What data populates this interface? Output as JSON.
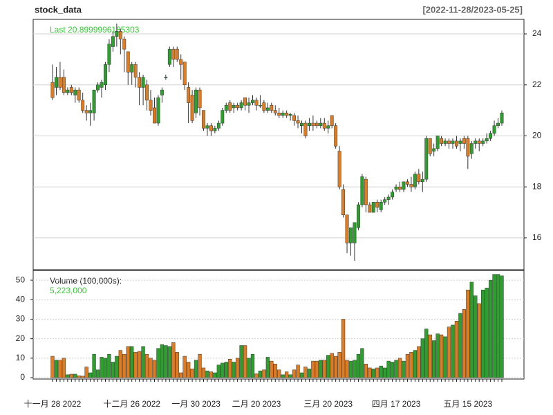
{
  "chart_data": {
    "type": "candlestick",
    "title": "stock_data",
    "subtitle": "[2022-11-28/2023-05-25]",
    "last_label": "Last 20.8999996185303",
    "volume_label": "Volume (100,000s):",
    "volume_last_label": "5,223,000",
    "up_color": "#2ca02c",
    "down_color": "#e07b20",
    "label_color": "#33cc33",
    "grid": true,
    "categories": [
      "十一月 28 2022",
      null,
      null,
      null,
      null,
      null,
      null,
      null,
      null,
      null,
      null,
      null,
      null,
      null,
      null,
      null,
      null,
      null,
      null,
      null,
      null,
      "十二月 26 2022",
      null,
      null,
      null,
      null,
      null,
      null,
      null,
      null,
      null,
      null,
      null,
      null,
      null,
      null,
      null,
      null,
      "一月 30 2023",
      null,
      null,
      null,
      null,
      null,
      null,
      null,
      null,
      null,
      null,
      null,
      null,
      null,
      null,
      null,
      "二月 20 2023",
      null,
      null,
      null,
      null,
      null,
      null,
      null,
      null,
      null,
      null,
      null,
      null,
      null,
      null,
      null,
      null,
      null,
      null,
      "三月 20 2023",
      null,
      null,
      null,
      null,
      null,
      null,
      null,
      null,
      null,
      null,
      null,
      null,
      null,
      null,
      null,
      null,
      null,
      "四月 17 2023",
      null,
      null,
      null,
      null,
      null,
      null,
      null,
      null,
      null,
      null,
      null,
      null,
      null,
      null,
      null,
      null,
      null,
      null,
      "五月 15 2023",
      null,
      null,
      null,
      null,
      null,
      null,
      null,
      null,
      null
    ],
    "ohlc": [
      [
        22.1,
        22.8,
        21.4,
        21.5
      ],
      [
        21.9,
        22.7,
        21.6,
        22.3
      ],
      [
        22.3,
        22.9,
        21.8,
        21.9
      ],
      [
        22.3,
        22.6,
        21.6,
        21.7
      ],
      [
        21.7,
        21.9,
        21.6,
        21.8
      ],
      [
        21.9,
        22.0,
        21.6,
        21.7
      ],
      [
        21.6,
        21.9,
        21.3,
        21.8
      ],
      [
        21.8,
        21.9,
        21.3,
        21.4
      ],
      [
        21.4,
        21.7,
        20.9,
        21.0
      ],
      [
        21.0,
        21.2,
        20.6,
        20.9
      ],
      [
        20.9,
        21.3,
        20.4,
        21.0
      ],
      [
        20.9,
        21.8,
        20.6,
        21.8
      ],
      [
        21.8,
        22.1,
        21.7,
        22.0
      ],
      [
        21.9,
        22.2,
        21.5,
        22.1
      ],
      [
        22.0,
        22.9,
        21.8,
        22.8
      ],
      [
        22.8,
        23.8,
        22.5,
        23.6
      ],
      [
        23.5,
        24.1,
        23.3,
        23.9
      ],
      [
        23.9,
        24.4,
        23.5,
        24.1
      ],
      [
        24.1,
        24.2,
        23.2,
        23.8
      ],
      [
        23.8,
        23.9,
        22.5,
        23.4
      ],
      [
        23.3,
        23.3,
        22.0,
        22.5
      ],
      [
        22.5,
        22.9,
        22.0,
        22.8
      ],
      [
        22.8,
        22.9,
        21.9,
        22.3
      ],
      [
        22.3,
        22.5,
        21.2,
        21.9
      ],
      [
        21.9,
        22.4,
        21.2,
        22.3
      ],
      [
        22.0,
        22.2,
        21.0,
        21.4
      ],
      [
        21.4,
        21.8,
        20.8,
        21.0
      ],
      [
        21.1,
        21.5,
        20.5,
        20.5
      ],
      [
        20.5,
        21.6,
        20.4,
        21.5
      ],
      [
        21.6,
        21.9,
        21.3,
        21.8
      ],
      [
        22.3,
        22.4,
        22.2,
        22.3
      ],
      [
        22.8,
        23.5,
        22.7,
        23.4
      ],
      [
        23.4,
        23.5,
        22.7,
        23.0
      ],
      [
        23.4,
        23.5,
        22.9,
        23.0
      ],
      [
        23.0,
        23.2,
        22.2,
        22.8
      ],
      [
        22.9,
        22.9,
        21.8,
        22.0
      ],
      [
        21.9,
        22.1,
        20.5,
        21.3
      ],
      [
        21.6,
        21.8,
        20.5,
        20.6
      ],
      [
        20.9,
        21.9,
        20.7,
        21.8
      ],
      [
        21.8,
        21.9,
        20.8,
        21.1
      ],
      [
        21.0,
        21.0,
        20.2,
        20.3
      ],
      [
        20.3,
        20.5,
        20.0,
        20.4
      ],
      [
        20.4,
        20.5,
        20.0,
        20.2
      ],
      [
        20.2,
        20.4,
        20.1,
        20.3
      ],
      [
        20.3,
        20.6,
        20.2,
        20.5
      ],
      [
        20.5,
        21.1,
        20.4,
        21.0
      ],
      [
        21.0,
        21.3,
        20.9,
        21.2
      ],
      [
        21.3,
        21.4,
        20.9,
        21.0
      ],
      [
        21.1,
        21.3,
        20.9,
        21.2
      ],
      [
        21.2,
        21.3,
        21.0,
        21.1
      ],
      [
        21.1,
        21.4,
        21.0,
        21.3
      ],
      [
        21.5,
        21.5,
        21.0,
        21.2
      ],
      [
        21.2,
        21.5,
        20.9,
        21.3
      ],
      [
        21.3,
        21.6,
        21.2,
        21.4
      ],
      [
        21.4,
        21.5,
        21.0,
        21.2
      ],
      [
        21.2,
        21.6,
        21.1,
        21.2
      ],
      [
        21.3,
        21.4,
        20.9,
        21.0
      ],
      [
        21.0,
        21.3,
        20.9,
        21.1
      ],
      [
        21.2,
        21.3,
        20.9,
        21.0
      ],
      [
        21.0,
        21.2,
        20.8,
        20.9
      ],
      [
        20.9,
        21.1,
        20.7,
        20.8
      ],
      [
        20.8,
        21.0,
        20.7,
        20.9
      ],
      [
        20.9,
        21.0,
        20.7,
        20.8
      ],
      [
        20.8,
        20.9,
        20.6,
        20.85
      ],
      [
        20.8,
        20.9,
        20.4,
        20.6
      ],
      [
        20.6,
        20.8,
        20.3,
        20.5
      ],
      [
        20.4,
        20.6,
        20.1,
        20.5
      ],
      [
        20.5,
        20.6,
        19.9,
        20.0
      ],
      [
        20.4,
        20.7,
        20.2,
        20.5
      ],
      [
        20.5,
        20.8,
        20.2,
        20.4
      ],
      [
        20.5,
        20.6,
        20.3,
        20.4
      ],
      [
        20.4,
        20.7,
        20.3,
        20.5
      ],
      [
        20.5,
        20.7,
        20.2,
        20.3
      ],
      [
        20.3,
        20.6,
        20.1,
        20.4
      ],
      [
        20.8,
        20.8,
        20.3,
        20.4
      ],
      [
        20.4,
        20.5,
        19.5,
        19.6
      ],
      [
        19.4,
        19.6,
        17.9,
        18.0
      ],
      [
        17.9,
        18.1,
        16.8,
        16.9
      ],
      [
        16.9,
        16.9,
        15.4,
        15.8
      ],
      [
        15.8,
        16.4,
        15.3,
        16.4
      ],
      [
        15.8,
        16.6,
        15.1,
        16.6
      ],
      [
        16.4,
        17.4,
        16.3,
        17.3
      ],
      [
        17.3,
        18.5,
        17.2,
        18.4
      ],
      [
        18.3,
        18.4,
        17.0,
        17.3
      ],
      [
        17.3,
        17.4,
        17.0,
        17.0
      ],
      [
        17.0,
        17.4,
        17.0,
        17.4
      ],
      [
        17.4,
        17.5,
        17.0,
        17.2
      ],
      [
        17.1,
        17.5,
        17.0,
        17.4
      ],
      [
        17.4,
        17.6,
        17.3,
        17.5
      ],
      [
        17.5,
        17.7,
        17.3,
        17.6
      ],
      [
        17.6,
        17.9,
        17.5,
        17.8
      ],
      [
        17.9,
        18.1,
        17.8,
        18.0
      ],
      [
        18.0,
        18.2,
        17.8,
        17.9
      ],
      [
        17.9,
        18.2,
        17.8,
        18.2
      ],
      [
        18.2,
        18.3,
        18.0,
        18.1
      ],
      [
        18.1,
        18.4,
        17.8,
        18.0
      ],
      [
        18.0,
        18.6,
        17.9,
        18.5
      ],
      [
        18.5,
        18.7,
        18.1,
        18.2
      ],
      [
        18.2,
        18.6,
        17.8,
        18.3
      ],
      [
        18.3,
        20.0,
        18.2,
        19.9
      ],
      [
        19.9,
        19.9,
        19.2,
        19.3
      ],
      [
        19.4,
        19.7,
        19.2,
        19.5
      ],
      [
        19.5,
        20.0,
        19.4,
        20.0
      ],
      [
        19.9,
        20.0,
        19.6,
        19.7
      ],
      [
        19.7,
        19.9,
        19.6,
        19.8
      ],
      [
        19.8,
        19.9,
        19.5,
        19.7
      ],
      [
        19.7,
        19.9,
        19.5,
        19.8
      ],
      [
        19.8,
        20.0,
        19.5,
        19.6
      ],
      [
        19.7,
        19.9,
        19.4,
        19.8
      ],
      [
        19.9,
        20.0,
        19.5,
        19.7
      ],
      [
        19.9,
        20.0,
        18.7,
        19.2
      ],
      [
        19.3,
        19.8,
        19.1,
        19.7
      ],
      [
        19.7,
        19.9,
        19.5,
        19.8
      ],
      [
        19.8,
        19.9,
        19.4,
        19.7
      ],
      [
        19.7,
        19.9,
        19.6,
        19.8
      ],
      [
        19.8,
        20.1,
        19.7,
        19.9
      ],
      [
        19.9,
        20.2,
        19.8,
        20.1
      ],
      [
        20.1,
        20.6,
        20.0,
        20.4
      ],
      [
        20.4,
        20.7,
        20.3,
        20.5
      ],
      [
        20.5,
        21.0,
        20.4,
        20.8999996185303
      ]
    ],
    "volume": [
      11,
      9,
      9,
      10,
      1.5,
      1.8,
      1.8,
      1,
      0.8,
      5.5,
      2.5,
      12,
      4,
      10.5,
      10,
      12,
      8,
      11,
      14,
      12,
      16,
      16,
      13,
      13.5,
      16,
      12,
      10,
      9,
      15,
      17,
      16.5,
      16,
      18,
      13,
      2.5,
      11,
      8,
      4.5,
      9,
      12,
      5,
      3.5,
      3,
      2.5,
      6.5,
      7.5,
      8,
      9.5,
      8,
      10,
      16.5,
      16.5,
      10,
      12,
      2,
      3.5,
      4,
      10.5,
      8.5,
      7,
      4,
      1.5,
      3,
      1.5,
      4,
      6.5,
      2.5,
      5.5,
      4.5,
      8.5,
      8.5,
      9,
      9,
      11.5,
      12.5,
      11,
      13,
      30,
      9,
      8.5,
      9,
      12,
      15,
      7,
      5,
      4.5,
      5,
      6,
      5,
      8.5,
      8,
      9,
      10,
      8.5,
      12,
      13,
      14,
      16,
      20,
      25,
      22,
      19,
      22.5,
      22,
      21,
      26,
      27,
      29,
      33,
      35,
      45,
      49,
      42,
      38,
      45,
      46,
      50,
      53,
      53,
      52.23
    ],
    "ylim": [
      14.75,
      24.57
    ],
    "yticks": [
      16,
      18,
      20,
      22,
      24
    ],
    "volume_ylim": [
      -0.7,
      55
    ],
    "volume_yticks": [
      0,
      10,
      20,
      30,
      40,
      50
    ]
  }
}
